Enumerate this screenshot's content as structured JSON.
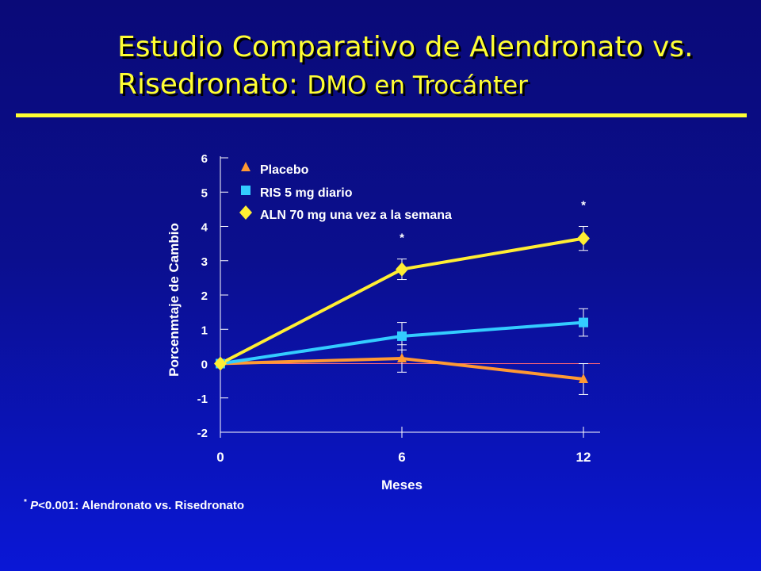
{
  "slide": {
    "title_line1": "Estudio Comparativo de Alendronato vs.",
    "title_line2_main": "Risedronato:",
    "title_line2_sub": "DMO en Trocánter",
    "footnote_mark": "*",
    "footnote_p": "P",
    "footnote_rest": "<0.001: Alendronato vs. Risedronato"
  },
  "chart_data": {
    "type": "line",
    "xlabel": "Meses",
    "ylabel": "Porcenmtaje de Cambio",
    "x": [
      0,
      6,
      12
    ],
    "x_ticks": [
      "0",
      "6",
      "12"
    ],
    "ylim": [
      -2,
      6
    ],
    "y_ticks": [
      "6",
      "5",
      "4",
      "3",
      "2",
      "1",
      "0",
      "-1",
      "-2"
    ],
    "legend_position": "top-left",
    "series": [
      {
        "name": "Placebo",
        "marker": "triangle",
        "color": "#ff9933",
        "values": [
          0,
          0.15,
          -0.45
        ],
        "error": [
          0,
          0.4,
          0.45
        ]
      },
      {
        "name": "RIS 5 mg diario",
        "marker": "square",
        "color": "#33ccff",
        "values": [
          0,
          0.8,
          1.2
        ],
        "error": [
          0,
          0.4,
          0.4
        ]
      },
      {
        "name": "ALN 70 mg una vez a la semana",
        "marker": "diamond",
        "color": "#ffee33",
        "values": [
          0,
          2.75,
          3.65
        ],
        "error": [
          0,
          0.3,
          0.35
        ]
      }
    ],
    "annotations": [
      {
        "text": "*",
        "x": 6,
        "series": 2
      },
      {
        "text": "*",
        "x": 12,
        "series": 2
      }
    ]
  }
}
